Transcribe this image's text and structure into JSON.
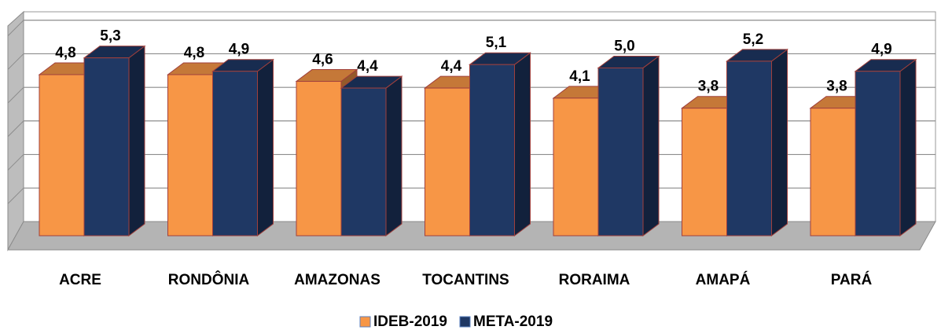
{
  "chart_data": {
    "type": "bar3d",
    "categories": [
      "ACRE",
      "RONDÔNIA",
      "AMAZONAS",
      "TOCANTINS",
      "RORAIMA",
      "AMAPÁ",
      "PARÁ"
    ],
    "series": [
      {
        "name": "IDEB-2019",
        "color": "#f79646",
        "values": [
          4.8,
          4.8,
          4.6,
          4.4,
          4.1,
          3.8,
          3.8
        ],
        "value_labels": [
          "4,8",
          "4,8",
          "4,6",
          "4,4",
          "4,1",
          "3,8",
          "3,8"
        ]
      },
      {
        "name": "META-2019",
        "color": "#1f3864",
        "values": [
          5.3,
          4.9,
          4.4,
          5.1,
          5.0,
          5.2,
          4.9
        ],
        "value_labels": [
          "5,3",
          "4,9",
          "4,4",
          "5,1",
          "5,0",
          "5,2",
          "4,9"
        ]
      }
    ],
    "ylim": [
      0,
      6
    ],
    "yticks": [
      0,
      1,
      2,
      3,
      4,
      5,
      6
    ],
    "grid": true,
    "legend": "bottom"
  }
}
